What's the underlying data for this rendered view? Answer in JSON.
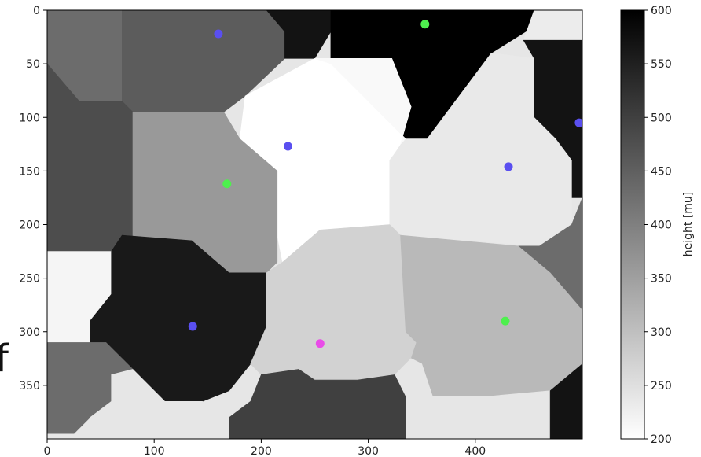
{
  "chart_data": {
    "type": "heatmap",
    "title": "",
    "xlabel": "",
    "ylabel": "",
    "xlim": [
      0,
      500
    ],
    "ylim": [
      400,
      0
    ],
    "x_ticks": [
      0,
      100,
      200,
      300,
      400
    ],
    "y_ticks": [
      0,
      50,
      100,
      150,
      200,
      250,
      300,
      350
    ],
    "colormap": "gray_r",
    "colorbar": {
      "label": "height [mu]",
      "range": [
        200,
        600
      ],
      "ticks": [
        200,
        250,
        300,
        350,
        400,
        450,
        500,
        550,
        600
      ]
    },
    "regions": [
      {
        "value": 430,
        "polygon": [
          [
            0,
            0
          ],
          [
            70,
            0
          ],
          [
            70,
            85
          ],
          [
            30,
            85
          ],
          [
            0,
            50
          ]
        ]
      },
      {
        "value": 455,
        "polygon": [
          [
            70,
            0
          ],
          [
            205,
            0
          ],
          [
            222,
            20
          ],
          [
            222,
            45
          ],
          [
            185,
            80
          ],
          [
            165,
            95
          ],
          [
            80,
            95
          ],
          [
            70,
            85
          ]
        ]
      },
      {
        "value": 570,
        "polygon": [
          [
            205,
            0
          ],
          [
            265,
            0
          ],
          [
            265,
            20
          ],
          [
            250,
            45
          ],
          [
            222,
            45
          ],
          [
            222,
            20
          ]
        ]
      },
      {
        "value": 600,
        "polygon": [
          [
            265,
            0
          ],
          [
            455,
            0
          ],
          [
            455,
            15
          ],
          [
            415,
            40
          ],
          [
            355,
            120
          ],
          [
            335,
            120
          ],
          [
            265,
            50
          ],
          [
            265,
            20
          ]
        ]
      },
      {
        "value": 230,
        "polygon": [
          [
            455,
            0
          ],
          [
            500,
            0
          ],
          [
            500,
            28
          ],
          [
            445,
            28
          ]
        ]
      },
      {
        "value": 570,
        "polygon": [
          [
            445,
            28
          ],
          [
            500,
            28
          ],
          [
            500,
            175
          ],
          [
            490,
            175
          ],
          [
            490,
            140
          ],
          [
            475,
            120
          ],
          [
            455,
            100
          ],
          [
            455,
            45
          ]
        ]
      },
      {
        "value": 480,
        "polygon": [
          [
            0,
            50
          ],
          [
            30,
            85
          ],
          [
            70,
            85
          ],
          [
            80,
            95
          ],
          [
            80,
            225
          ],
          [
            60,
            225
          ],
          [
            0,
            225
          ]
        ]
      },
      {
        "value": 200,
        "polygon": [
          [
            185,
            80
          ],
          [
            250,
            45
          ],
          [
            322,
            45
          ],
          [
            340,
            90
          ],
          [
            330,
            125
          ],
          [
            320,
            140
          ],
          [
            320,
            200
          ],
          [
            255,
            205
          ],
          [
            220,
            235
          ],
          [
            215,
            210
          ],
          [
            215,
            150
          ],
          [
            180,
            120
          ]
        ]
      },
      {
        "value": 210,
        "polygon": [
          [
            250,
            45
          ],
          [
            265,
            50
          ],
          [
            335,
            120
          ],
          [
            330,
            125
          ],
          [
            340,
            90
          ],
          [
            322,
            45
          ]
        ]
      },
      {
        "value": 360,
        "polygon": [
          [
            80,
            95
          ],
          [
            165,
            95
          ],
          [
            180,
            120
          ],
          [
            215,
            150
          ],
          [
            215,
            235
          ],
          [
            205,
            245
          ],
          [
            170,
            245
          ],
          [
            135,
            215
          ],
          [
            80,
            215
          ]
        ]
      },
      {
        "value": 235,
        "polygon": [
          [
            335,
            120
          ],
          [
            355,
            120
          ],
          [
            415,
            40
          ],
          [
            455,
            45
          ],
          [
            455,
            100
          ],
          [
            475,
            120
          ],
          [
            490,
            140
          ],
          [
            490,
            200
          ],
          [
            460,
            220
          ],
          [
            330,
            210
          ],
          [
            320,
            200
          ],
          [
            320,
            140
          ]
        ]
      },
      {
        "value": 430,
        "polygon": [
          [
            460,
            220
          ],
          [
            490,
            200
          ],
          [
            500,
            175
          ],
          [
            500,
            280
          ],
          [
            470,
            245
          ],
          [
            440,
            220
          ]
        ]
      },
      {
        "value": 215,
        "polygon": [
          [
            0,
            225
          ],
          [
            60,
            225
          ],
          [
            60,
            265
          ],
          [
            40,
            290
          ],
          [
            40,
            310
          ],
          [
            0,
            310
          ]
        ]
      },
      {
        "value": 560,
        "polygon": [
          [
            60,
            225
          ],
          [
            70,
            210
          ],
          [
            135,
            215
          ],
          [
            170,
            245
          ],
          [
            205,
            245
          ],
          [
            205,
            295
          ],
          [
            190,
            330
          ],
          [
            170,
            355
          ],
          [
            145,
            365
          ],
          [
            110,
            365
          ],
          [
            80,
            335
          ],
          [
            55,
            310
          ],
          [
            40,
            310
          ],
          [
            40,
            290
          ],
          [
            60,
            265
          ]
        ]
      },
      {
        "value": 270,
        "polygon": [
          [
            205,
            245
          ],
          [
            220,
            235
          ],
          [
            255,
            205
          ],
          [
            320,
            200
          ],
          [
            330,
            210
          ],
          [
            335,
            300
          ],
          [
            345,
            310
          ],
          [
            340,
            325
          ],
          [
            325,
            340
          ],
          [
            290,
            345
          ],
          [
            250,
            345
          ],
          [
            235,
            335
          ],
          [
            200,
            340
          ],
          [
            190,
            330
          ],
          [
            205,
            295
          ]
        ]
      },
      {
        "value": 310,
        "polygon": [
          [
            330,
            210
          ],
          [
            440,
            220
          ],
          [
            470,
            245
          ],
          [
            500,
            280
          ],
          [
            500,
            330
          ],
          [
            470,
            355
          ],
          [
            415,
            360
          ],
          [
            360,
            360
          ],
          [
            350,
            330
          ],
          [
            340,
            325
          ],
          [
            345,
            310
          ],
          [
            335,
            300
          ]
        ]
      },
      {
        "value": 430,
        "polygon": [
          [
            0,
            310
          ],
          [
            40,
            310
          ],
          [
            55,
            310
          ],
          [
            80,
            335
          ],
          [
            60,
            350
          ],
          [
            60,
            365
          ],
          [
            40,
            380
          ],
          [
            25,
            395
          ],
          [
            0,
            395
          ]
        ]
      },
      {
        "value": 240,
        "polygon": [
          [
            40,
            380
          ],
          [
            60,
            365
          ],
          [
            60,
            340
          ],
          [
            80,
            335
          ],
          [
            110,
            365
          ],
          [
            145,
            365
          ],
          [
            170,
            380
          ],
          [
            170,
            400
          ],
          [
            40,
            400
          ]
        ]
      },
      {
        "value": 500,
        "polygon": [
          [
            170,
            380
          ],
          [
            190,
            365
          ],
          [
            200,
            340
          ],
          [
            235,
            335
          ],
          [
            250,
            345
          ],
          [
            290,
            345
          ],
          [
            325,
            340
          ],
          [
            335,
            360
          ],
          [
            335,
            400
          ],
          [
            170,
            400
          ]
        ]
      },
      {
        "value": 240,
        "polygon": [
          [
            325,
            340
          ],
          [
            340,
            325
          ],
          [
            350,
            330
          ],
          [
            360,
            360
          ],
          [
            415,
            360
          ],
          [
            470,
            355
          ],
          [
            470,
            400
          ],
          [
            335,
            400
          ],
          [
            335,
            360
          ]
        ]
      },
      {
        "value": 570,
        "polygon": [
          [
            470,
            355
          ],
          [
            500,
            330
          ],
          [
            500,
            400
          ],
          [
            470,
            400
          ]
        ]
      }
    ],
    "points": [
      {
        "x": 160,
        "y": 22,
        "color": "#5a4ff0"
      },
      {
        "x": 353,
        "y": 13,
        "color": "#4ef04e"
      },
      {
        "x": 225,
        "y": 127,
        "color": "#5a4ff0"
      },
      {
        "x": 497,
        "y": 105,
        "color": "#5a4ff0"
      },
      {
        "x": 431,
        "y": 146,
        "color": "#5a4ff0"
      },
      {
        "x": 168,
        "y": 162,
        "color": "#4ef04e"
      },
      {
        "x": 136,
        "y": 295,
        "color": "#5a4ff0"
      },
      {
        "x": 255,
        "y": 311,
        "color": "#e94ce8"
      },
      {
        "x": 428,
        "y": 290,
        "color": "#4ef04e"
      }
    ]
  },
  "fragment_text": "f"
}
